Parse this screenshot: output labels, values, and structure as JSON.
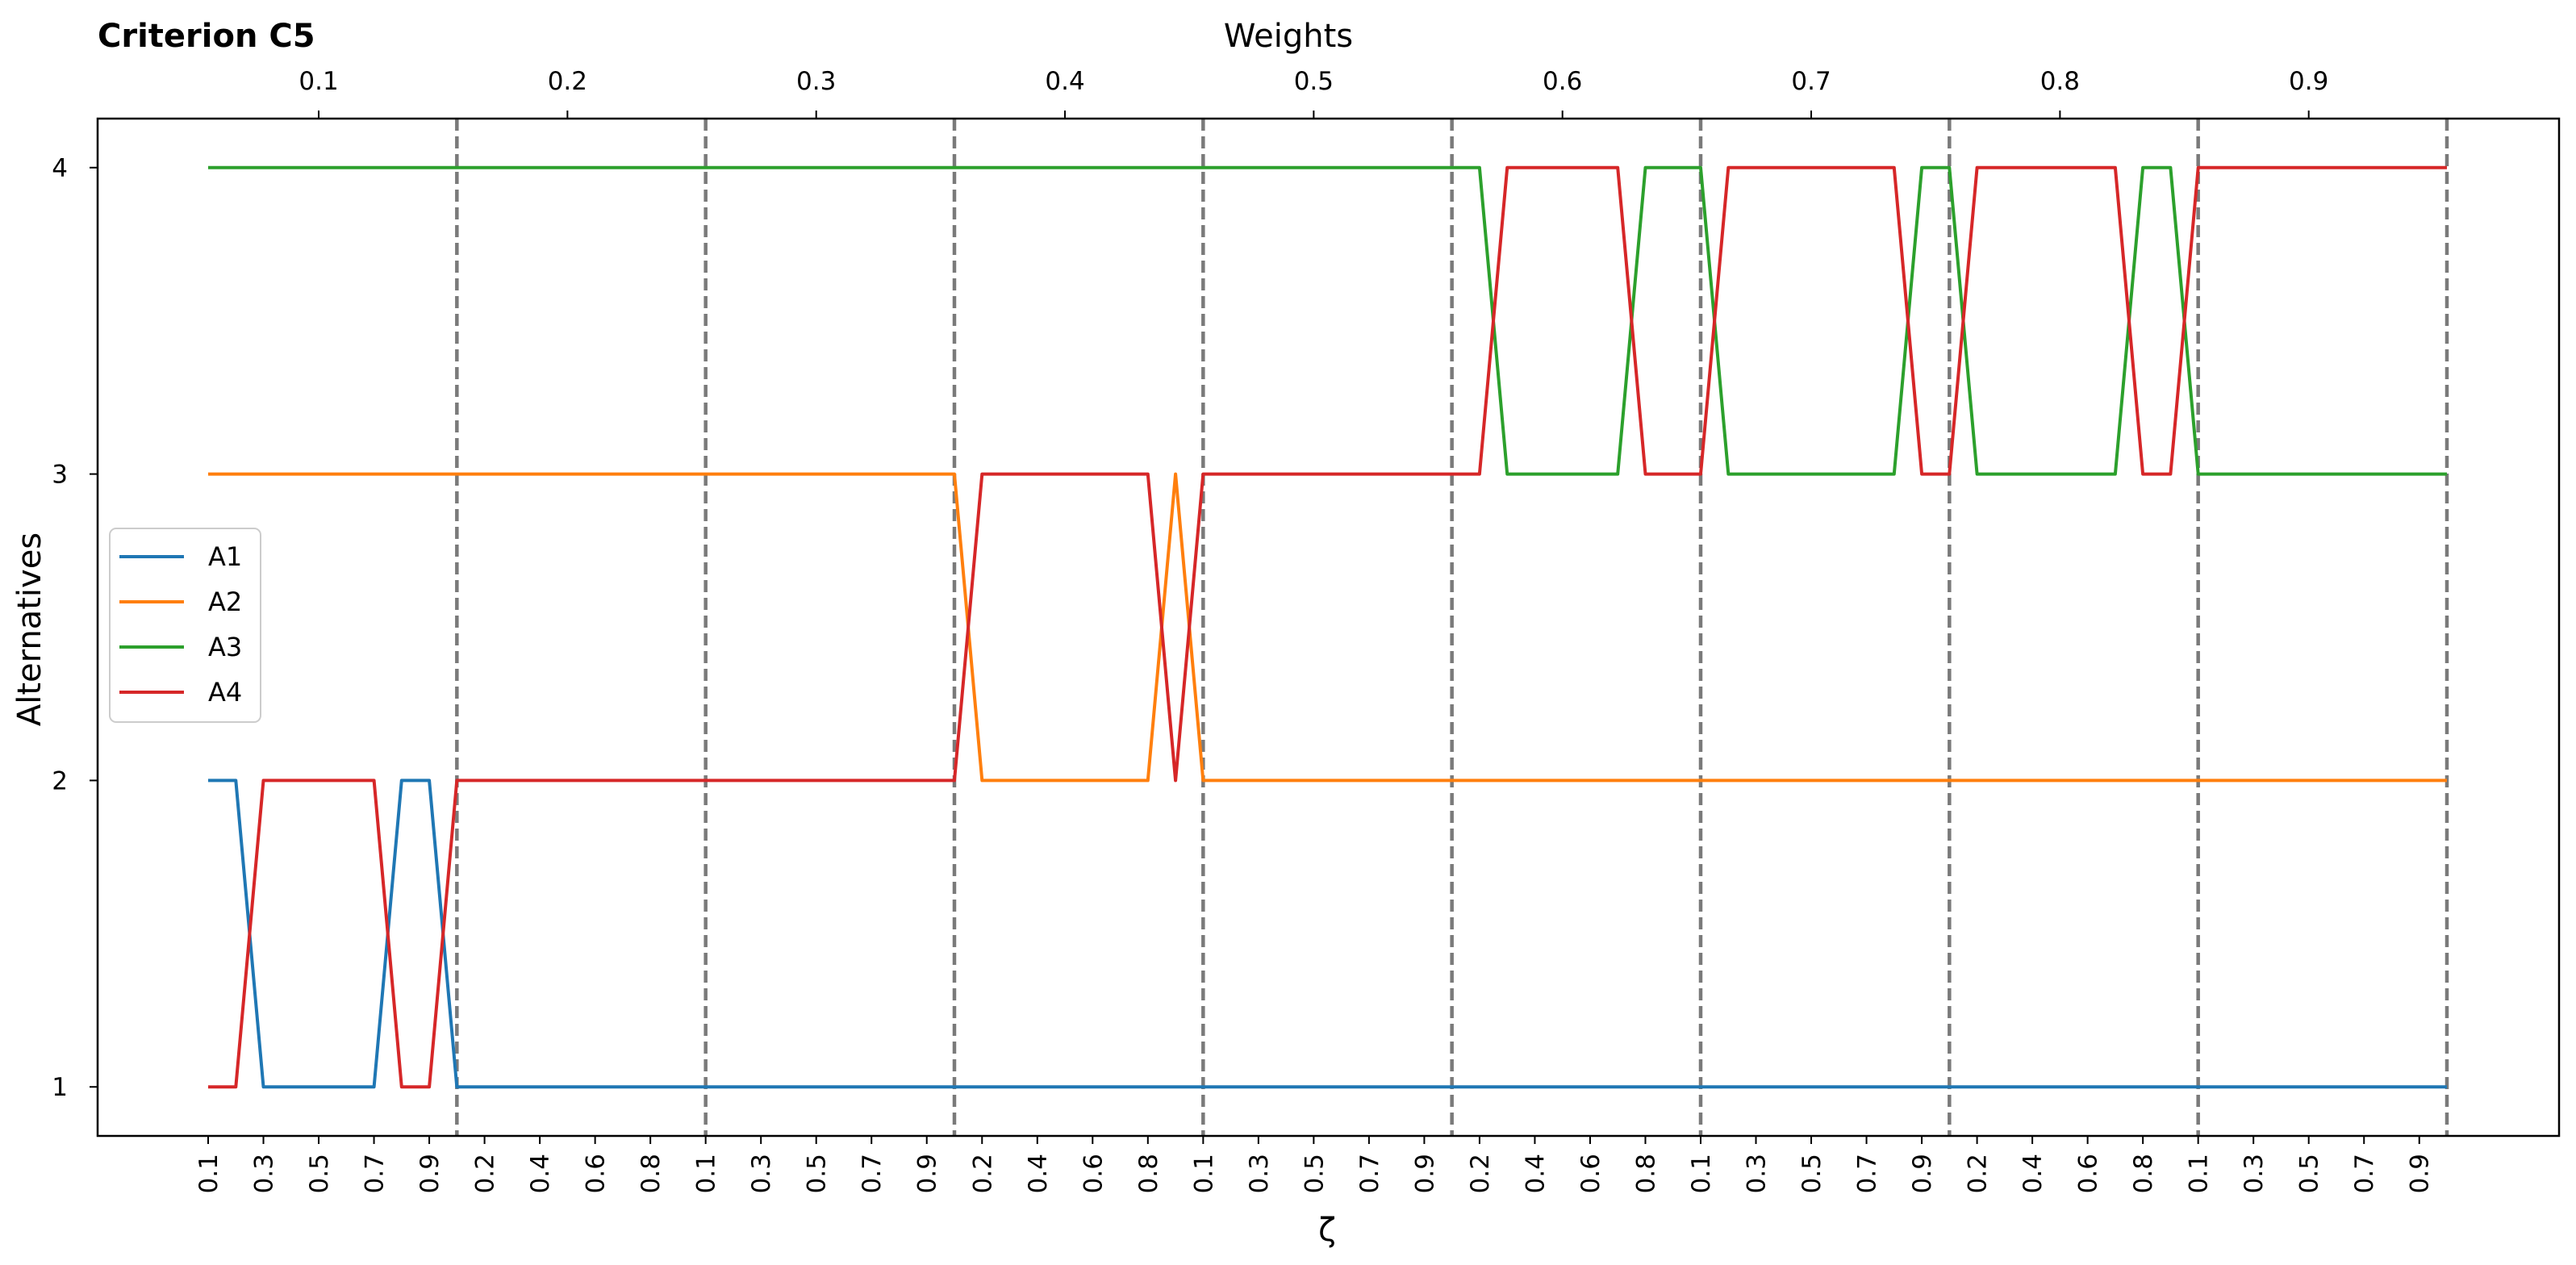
{
  "chart_data": {
    "type": "line",
    "title": "Criterion C5",
    "top_axis_label": "Weights",
    "top_axis_ticks": [
      "0.1",
      "0.2",
      "0.3",
      "0.4",
      "0.5",
      "0.6",
      "0.7",
      "0.8",
      "0.9"
    ],
    "top_axis_values": [
      0.1,
      0.2,
      0.3,
      0.4,
      0.5,
      0.6,
      0.7,
      0.8,
      0.9
    ],
    "xlabel": "ζ",
    "ylabel": "Alternatives",
    "ylim": [
      0.84,
      4.16
    ],
    "y_ticks": [
      "1",
      "2",
      "3",
      "4"
    ],
    "y_tick_values": [
      1,
      2,
      3,
      4
    ],
    "zeta_tick_labels": [
      "0.1",
      "0.3",
      "0.5",
      "0.7",
      "0.9",
      "0.2",
      "0.4",
      "0.6",
      "0.8",
      "0.1",
      "0.3",
      "0.5",
      "0.7",
      "0.9",
      "0.2",
      "0.4",
      "0.6",
      "0.8",
      "0.1",
      "0.3",
      "0.5",
      "0.7",
      "0.9",
      "0.2",
      "0.4",
      "0.6",
      "0.8",
      "0.1",
      "0.3",
      "0.5",
      "0.7",
      "0.9",
      "0.2",
      "0.4",
      "0.6",
      "0.8",
      "0.1",
      "0.3",
      "0.5",
      "0.7",
      "0.9"
    ],
    "legend_placement": "center-left",
    "grid": false,
    "weight_separators": "dashed vertical lines between weight blocks",
    "series": [
      {
        "name": "A1",
        "color": "#1f77b4",
        "points": [
          [
            0,
            2
          ],
          [
            1,
            2
          ],
          [
            2,
            1
          ],
          [
            6,
            1
          ],
          [
            7,
            2
          ],
          [
            8,
            2
          ],
          [
            9,
            1
          ],
          [
            81,
            1
          ]
        ]
      },
      {
        "name": "A2",
        "color": "#ff7f0e",
        "points": [
          [
            0,
            3
          ],
          [
            27,
            3
          ],
          [
            28,
            2
          ],
          [
            34,
            2
          ],
          [
            35,
            3
          ],
          [
            36,
            2
          ],
          [
            81,
            2
          ]
        ]
      },
      {
        "name": "A3",
        "color": "#2ca02c",
        "points": [
          [
            0,
            4
          ],
          [
            46,
            4
          ],
          [
            47,
            3
          ],
          [
            51,
            3
          ],
          [
            52,
            4
          ],
          [
            54,
            4
          ],
          [
            55,
            3
          ],
          [
            61,
            3
          ],
          [
            62,
            4
          ],
          [
            63,
            4
          ],
          [
            64,
            3
          ],
          [
            69,
            3
          ],
          [
            70,
            4
          ],
          [
            71,
            4
          ],
          [
            72,
            3
          ],
          [
            81,
            3
          ]
        ]
      },
      {
        "name": "A4",
        "color": "#d62728",
        "points": [
          [
            0,
            1
          ],
          [
            1,
            1
          ],
          [
            2,
            2
          ],
          [
            6,
            2
          ],
          [
            7,
            1
          ],
          [
            8,
            1
          ],
          [
            9,
            2
          ],
          [
            27,
            2
          ],
          [
            28,
            3
          ],
          [
            34,
            3
          ],
          [
            35,
            2
          ],
          [
            36,
            3
          ],
          [
            46,
            3
          ],
          [
            47,
            4
          ],
          [
            51,
            4
          ],
          [
            52,
            3
          ],
          [
            54,
            3
          ],
          [
            55,
            4
          ],
          [
            61,
            4
          ],
          [
            62,
            3
          ],
          [
            63,
            3
          ],
          [
            64,
            4
          ],
          [
            69,
            4
          ],
          [
            70,
            3
          ],
          [
            71,
            3
          ],
          [
            72,
            4
          ],
          [
            81,
            4
          ]
        ]
      }
    ]
  }
}
